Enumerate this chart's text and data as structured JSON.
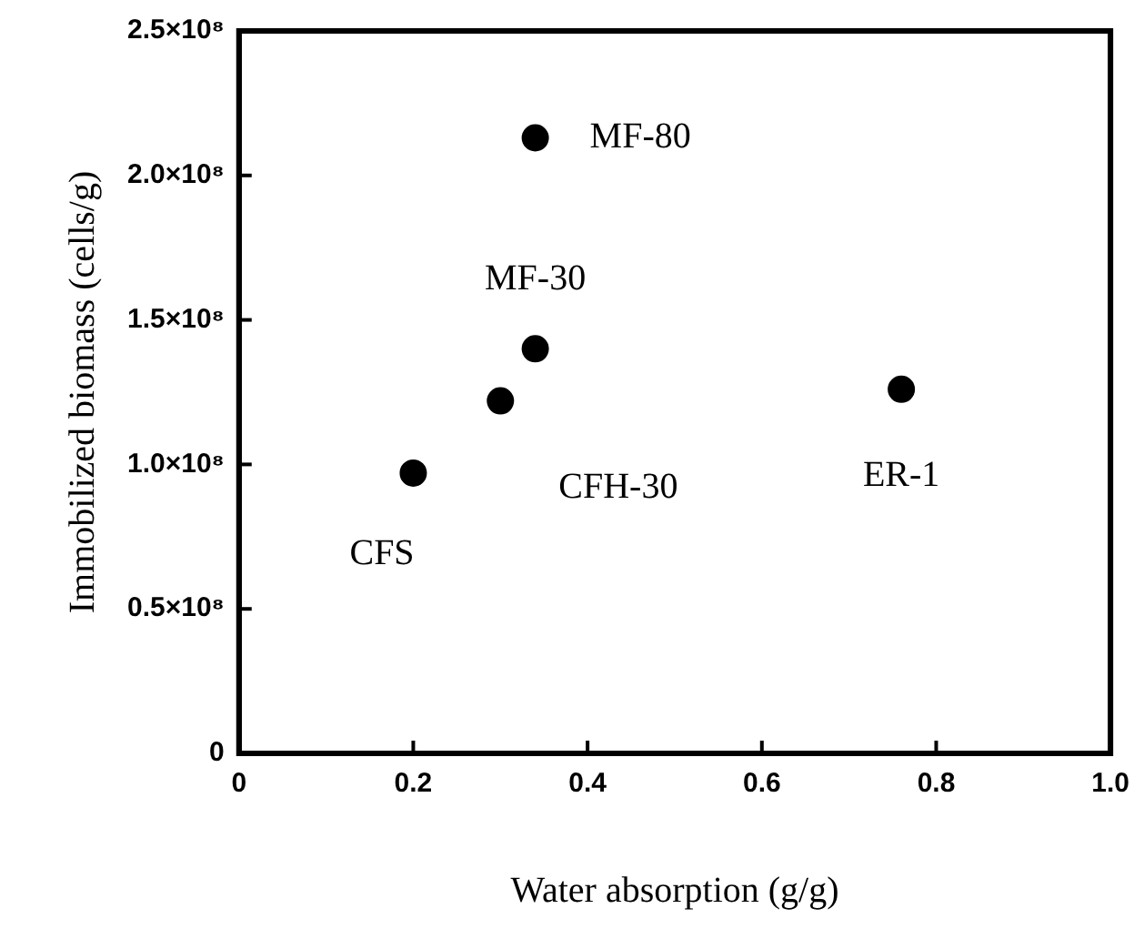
{
  "chart_data": {
    "type": "scatter",
    "xlabel": "Water absorption (g/g)",
    "ylabel": "Immobilized biomass (cells/g)",
    "series": [
      {
        "color": "#000000",
        "x": [
          0.2,
          0.3,
          0.34,
          0.34,
          0.76
        ],
        "values": [
          97000000,
          122000000,
          140000000,
          213000000,
          126000000
        ]
      }
    ],
    "xlim": [
      0,
      1
    ],
    "xticks": [
      0,
      0.2,
      0.4,
      0.6,
      0.8,
      {
        "value": 1,
        "label": "1.0"
      }
    ],
    "ylim": [
      0,
      250000000
    ],
    "yticks": [
      0,
      {
        "value": 50000000,
        "label": "0.5×10⁸"
      },
      {
        "value": 100000000,
        "label": "1.0×10⁸"
      },
      {
        "value": 150000000,
        "label": "1.5×10⁸"
      },
      {
        "value": 200000000,
        "label": "2.0×10⁸"
      },
      {
        "value": 250000000,
        "label": "2.5×10⁸"
      }
    ],
    "annotations": [
      {
        "text": "CFS",
        "x": 0.2,
        "y": 97000000
      },
      {
        "text": "CFH-30",
        "x": 0.3,
        "y": 122000000
      },
      {
        "text": "MF-30",
        "x": 0.34,
        "y": 140000000
      },
      {
        "text": "MF-80",
        "x": 0.34,
        "y": 213000000
      },
      {
        "text": "ER-1",
        "x": 0.76,
        "y": 126000000
      }
    ],
    "marker": "circle",
    "grid": false,
    "legend": false
  }
}
